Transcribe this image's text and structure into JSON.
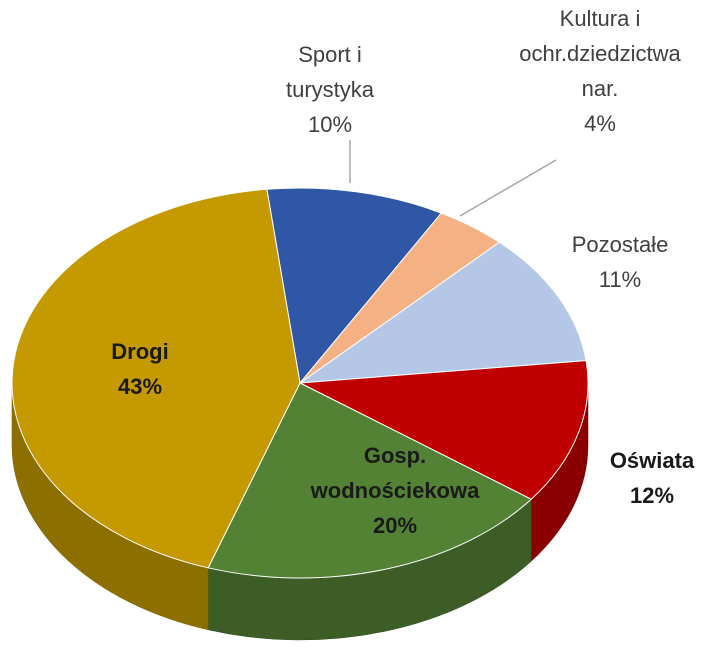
{
  "chart_data": {
    "type": "pie",
    "categories": [
      "Sport i turystyka",
      "Kultura i ochr.dziedzictwa nar.",
      "Pozostałe",
      "Oświata",
      "Gosp. wodnościekowa",
      "Drogi"
    ],
    "values": [
      10,
      4,
      11,
      12,
      20,
      43
    ],
    "value_labels": [
      "10%",
      "4%",
      "11%",
      "12%",
      "20%",
      "43%"
    ],
    "colors": [
      "#2f57a5",
      "#f4b183",
      "#b4c7e7",
      "#c00000",
      "#548235",
      "#c49a00"
    ],
    "three_d": true
  }
}
